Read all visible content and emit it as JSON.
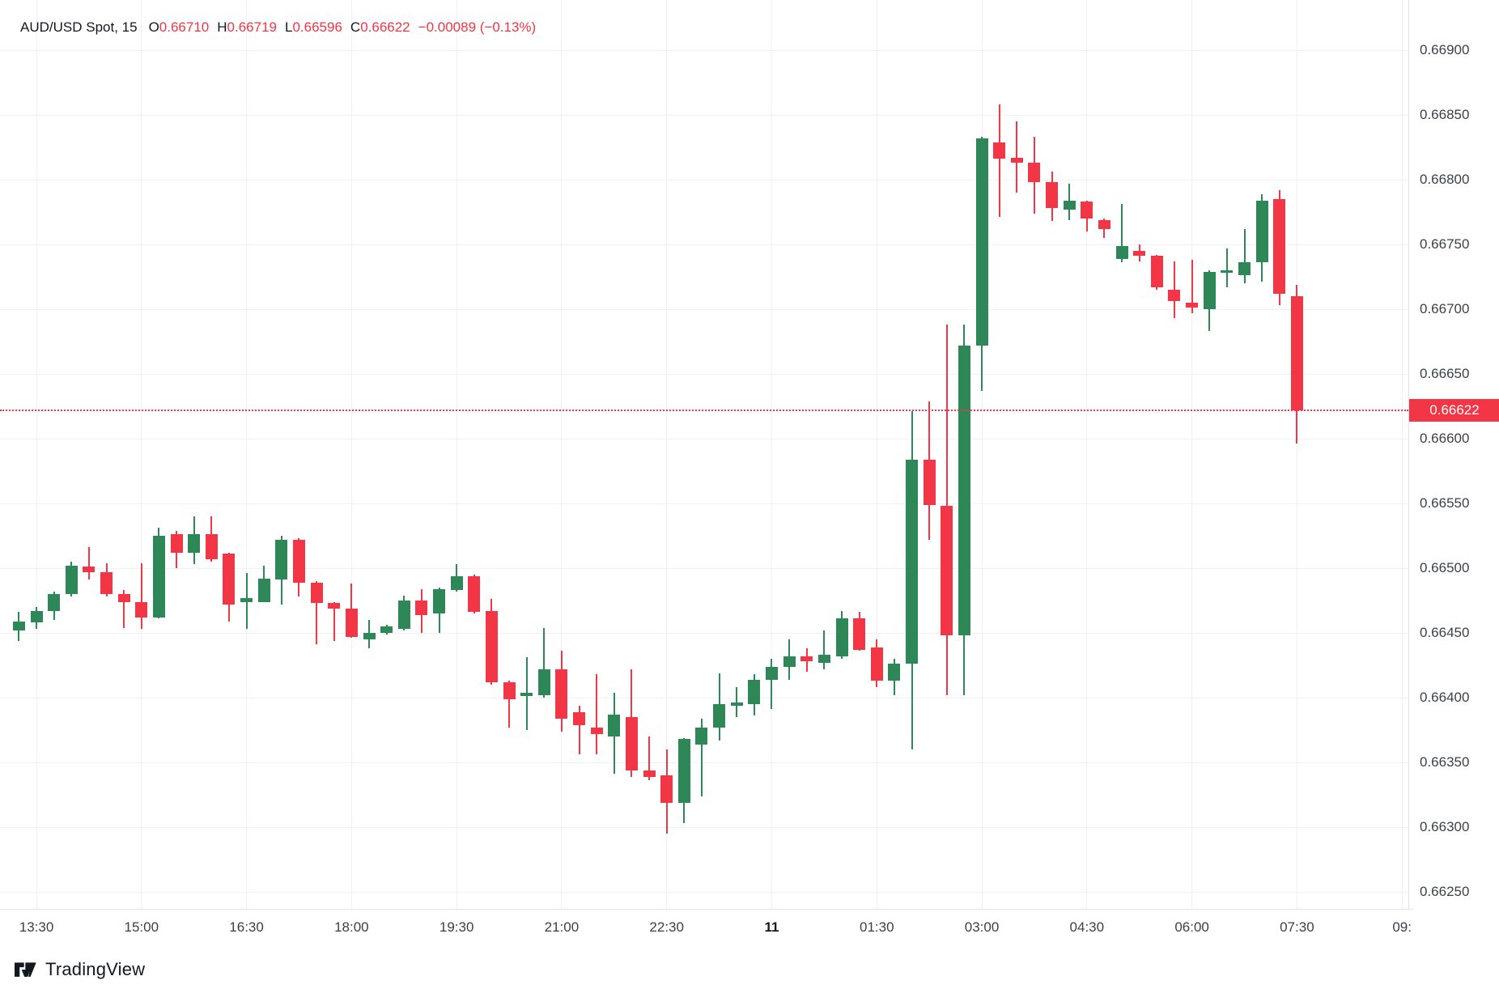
{
  "header": {
    "symbol": "AUD/USD Spot",
    "interval": "15",
    "ohlc": [
      {
        "label": "O",
        "value": "0.66710"
      },
      {
        "label": "H",
        "value": "0.66719"
      },
      {
        "label": "L",
        "value": "0.66596"
      },
      {
        "label": "C",
        "value": "0.66622"
      }
    ],
    "change": "−0.00089 (−0.13%)"
  },
  "colors": {
    "up": "#2e8757",
    "down": "#f23645",
    "current_price": "#f23645",
    "badge_text": "#ffffff",
    "grid": "#f0f1f4",
    "axis_text": "#3a3f4a",
    "header_text": "#131722"
  },
  "logo": {
    "text": "TradingView"
  },
  "chart_data": {
    "type": "candlestick",
    "title": "AUD/USD Spot, 15",
    "interval_minutes": 15,
    "grid": true,
    "current_price": {
      "value": 0.66622,
      "label": "0.66622",
      "direction": "down"
    },
    "y_axis": {
      "side": "right",
      "min": 0.6625,
      "max": 0.669,
      "step": 0.0005,
      "labels": [
        "0.66900",
        "0.66850",
        "0.66800",
        "0.66750",
        "0.66700",
        "0.66650",
        "0.66600",
        "0.66550",
        "0.66500",
        "0.66450",
        "0.66400",
        "0.66350",
        "0.66300",
        "0.66250"
      ]
    },
    "x_axis": {
      "labels": [
        {
          "text": "13:30",
          "candle_index": 1,
          "bold": false
        },
        {
          "text": "15:00",
          "candle_index": 7,
          "bold": false
        },
        {
          "text": "16:30",
          "candle_index": 13,
          "bold": false
        },
        {
          "text": "18:00",
          "candle_index": 19,
          "bold": false
        },
        {
          "text": "19:30",
          "candle_index": 25,
          "bold": false
        },
        {
          "text": "21:00",
          "candle_index": 31,
          "bold": false
        },
        {
          "text": "22:30",
          "candle_index": 37,
          "bold": false
        },
        {
          "text": "11",
          "candle_index": 43,
          "bold": true
        },
        {
          "text": "01:30",
          "candle_index": 49,
          "bold": false
        },
        {
          "text": "03:00",
          "candle_index": 55,
          "bold": false
        },
        {
          "text": "04:30",
          "candle_index": 61,
          "bold": false
        },
        {
          "text": "06:00",
          "candle_index": 67,
          "bold": false
        },
        {
          "text": "07:30",
          "candle_index": 73,
          "bold": false
        },
        {
          "text": "09:",
          "candle_index": 79,
          "bold": false
        }
      ]
    },
    "candles_format": [
      "time",
      "open",
      "high",
      "low",
      "close"
    ],
    "candles": [
      [
        "13:15",
        0.66452,
        0.66466,
        0.66444,
        0.66459
      ],
      [
        "13:30",
        0.66458,
        0.6647,
        0.66453,
        0.66467
      ],
      [
        "13:45",
        0.66467,
        0.66482,
        0.6646,
        0.6648
      ],
      [
        "14:00",
        0.6648,
        0.66505,
        0.66478,
        0.66502
      ],
      [
        "14:15",
        0.66501,
        0.66516,
        0.66491,
        0.66497
      ],
      [
        "14:30",
        0.66497,
        0.66504,
        0.66478,
        0.6648
      ],
      [
        "14:45",
        0.6648,
        0.66483,
        0.66454,
        0.66474
      ],
      [
        "15:00",
        0.66474,
        0.66504,
        0.66453,
        0.66462
      ],
      [
        "15:15",
        0.66462,
        0.66531,
        0.66461,
        0.66525
      ],
      [
        "15:30",
        0.66526,
        0.66529,
        0.665,
        0.66512
      ],
      [
        "15:45",
        0.66512,
        0.6654,
        0.66503,
        0.66526
      ],
      [
        "16:00",
        0.66526,
        0.6654,
        0.66505,
        0.66507
      ],
      [
        "16:15",
        0.66511,
        0.66512,
        0.66459,
        0.66472
      ],
      [
        "16:30",
        0.66474,
        0.66496,
        0.66453,
        0.66477
      ],
      [
        "16:45",
        0.66474,
        0.66502,
        0.66474,
        0.66492
      ],
      [
        "17:00",
        0.66491,
        0.66525,
        0.66472,
        0.66522
      ],
      [
        "17:15",
        0.66522,
        0.66523,
        0.66478,
        0.66489
      ],
      [
        "17:30",
        0.66489,
        0.6649,
        0.66441,
        0.66473
      ],
      [
        "17:45",
        0.66473,
        0.66474,
        0.66444,
        0.66469
      ],
      [
        "18:00",
        0.66469,
        0.66488,
        0.66446,
        0.66447
      ],
      [
        "18:15",
        0.66445,
        0.6646,
        0.66438,
        0.6645
      ],
      [
        "18:30",
        0.6645,
        0.66456,
        0.66449,
        0.66455
      ],
      [
        "18:45",
        0.66453,
        0.66479,
        0.66452,
        0.66475
      ],
      [
        "19:00",
        0.66475,
        0.66484,
        0.6645,
        0.66464
      ],
      [
        "19:15",
        0.66465,
        0.66485,
        0.6645,
        0.66484
      ],
      [
        "19:30",
        0.66483,
        0.66503,
        0.66482,
        0.66494
      ],
      [
        "19:45",
        0.66494,
        0.66495,
        0.66465,
        0.66466
      ],
      [
        "20:00",
        0.66467,
        0.66476,
        0.6641,
        0.66412
      ],
      [
        "20:15",
        0.66412,
        0.66413,
        0.66377,
        0.66399
      ],
      [
        "20:30",
        0.66401,
        0.66431,
        0.66375,
        0.66404
      ],
      [
        "20:45",
        0.66402,
        0.66454,
        0.664,
        0.66422
      ],
      [
        "21:00",
        0.66422,
        0.66436,
        0.66374,
        0.66384
      ],
      [
        "21:15",
        0.66389,
        0.66394,
        0.66356,
        0.66379
      ],
      [
        "21:30",
        0.66377,
        0.66418,
        0.66356,
        0.66372
      ],
      [
        "21:45",
        0.6637,
        0.66404,
        0.66341,
        0.66387
      ],
      [
        "22:00",
        0.66385,
        0.66422,
        0.66339,
        0.66344
      ],
      [
        "22:15",
        0.66344,
        0.6637,
        0.66336,
        0.66339
      ],
      [
        "22:30",
        0.6634,
        0.6636,
        0.66295,
        0.66319
      ],
      [
        "22:45",
        0.66319,
        0.66369,
        0.66303,
        0.66368
      ],
      [
        "23:00",
        0.66364,
        0.66384,
        0.66324,
        0.66377
      ],
      [
        "23:15",
        0.66377,
        0.66419,
        0.66367,
        0.66395
      ],
      [
        "23:30",
        0.66394,
        0.66408,
        0.66385,
        0.66396
      ],
      [
        "23:45",
        0.66395,
        0.66418,
        0.66386,
        0.66414
      ],
      [
        "00:00",
        0.66414,
        0.6643,
        0.66391,
        0.66424
      ],
      [
        "00:15",
        0.66424,
        0.66445,
        0.66414,
        0.66432
      ],
      [
        "00:30",
        0.66432,
        0.66438,
        0.6642,
        0.66428
      ],
      [
        "00:45",
        0.66427,
        0.66452,
        0.66422,
        0.66433
      ],
      [
        "01:00",
        0.66432,
        0.66467,
        0.6643,
        0.66461
      ],
      [
        "01:15",
        0.66461,
        0.66466,
        0.66436,
        0.66437
      ],
      [
        "01:30",
        0.66439,
        0.66445,
        0.66408,
        0.66413
      ],
      [
        "01:45",
        0.66413,
        0.6643,
        0.66402,
        0.66426
      ],
      [
        "02:00",
        0.66426,
        0.66621,
        0.6636,
        0.66584
      ],
      [
        "02:15",
        0.66584,
        0.66629,
        0.66522,
        0.66549
      ],
      [
        "02:30",
        0.66548,
        0.66688,
        0.66402,
        0.66448
      ],
      [
        "02:45",
        0.66448,
        0.66688,
        0.66402,
        0.66672
      ],
      [
        "03:00",
        0.66672,
        0.66833,
        0.66637,
        0.66832
      ],
      [
        "03:15",
        0.66829,
        0.66858,
        0.66771,
        0.66816
      ],
      [
        "03:30",
        0.66817,
        0.66845,
        0.6679,
        0.66813
      ],
      [
        "03:45",
        0.66813,
        0.66833,
        0.66774,
        0.66798
      ],
      [
        "04:00",
        0.66798,
        0.66806,
        0.66768,
        0.66778
      ],
      [
        "04:15",
        0.66777,
        0.66797,
        0.66769,
        0.66784
      ],
      [
        "04:30",
        0.66783,
        0.66784,
        0.6676,
        0.6677
      ],
      [
        "04:45",
        0.66769,
        0.6677,
        0.66755,
        0.66762
      ],
      [
        "05:00",
        0.66739,
        0.66781,
        0.66736,
        0.66749
      ],
      [
        "05:15",
        0.66745,
        0.6675,
        0.66737,
        0.66741
      ],
      [
        "05:30",
        0.66741,
        0.66742,
        0.66715,
        0.66717
      ],
      [
        "05:45",
        0.66715,
        0.66737,
        0.66693,
        0.66706
      ],
      [
        "06:00",
        0.66705,
        0.66738,
        0.66697,
        0.66701
      ],
      [
        "06:15",
        0.667,
        0.6673,
        0.66683,
        0.66729
      ],
      [
        "06:30",
        0.66728,
        0.66747,
        0.66717,
        0.6673
      ],
      [
        "06:45",
        0.66726,
        0.66762,
        0.6672,
        0.66736
      ],
      [
        "07:00",
        0.66736,
        0.66789,
        0.66721,
        0.66784
      ],
      [
        "07:15",
        0.66785,
        0.66792,
        0.66703,
        0.66712
      ],
      [
        "07:30",
        0.6671,
        0.66719,
        0.66596,
        0.66622
      ]
    ]
  }
}
